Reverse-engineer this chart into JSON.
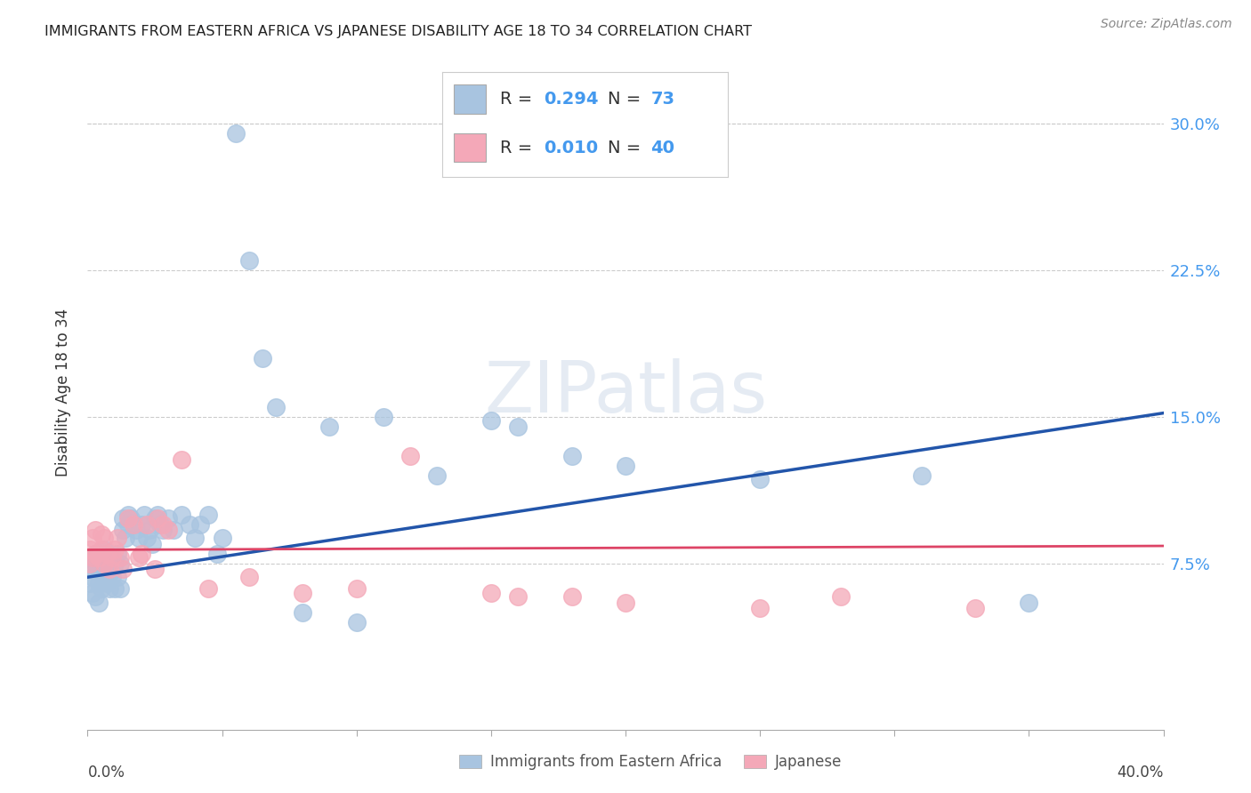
{
  "title": "IMMIGRANTS FROM EASTERN AFRICA VS JAPANESE DISABILITY AGE 18 TO 34 CORRELATION CHART",
  "source": "Source: ZipAtlas.com",
  "ylabel": "Disability Age 18 to 34",
  "ytick_labels": [
    "7.5%",
    "15.0%",
    "22.5%",
    "30.0%"
  ],
  "ytick_values": [
    0.075,
    0.15,
    0.225,
    0.3
  ],
  "xlim": [
    0.0,
    0.4
  ],
  "ylim": [
    -0.01,
    0.335
  ],
  "blue_R": 0.294,
  "blue_N": 73,
  "pink_R": 0.01,
  "pink_N": 40,
  "blue_color": "#a8c4e0",
  "pink_color": "#f4a8b8",
  "blue_line_color": "#2255aa",
  "pink_line_color": "#dd4466",
  "legend_label_blue": "Immigrants from Eastern Africa",
  "legend_label_pink": "Japanese",
  "watermark": "ZIPatlas",
  "blue_line_x": [
    0.0,
    0.4
  ],
  "blue_line_y": [
    0.068,
    0.152
  ],
  "pink_line_x": [
    0.0,
    0.4
  ],
  "pink_line_y": [
    0.082,
    0.084
  ],
  "blue_scatter_x": [
    0.001,
    0.001,
    0.002,
    0.002,
    0.002,
    0.003,
    0.003,
    0.003,
    0.004,
    0.004,
    0.004,
    0.005,
    0.005,
    0.005,
    0.006,
    0.006,
    0.006,
    0.007,
    0.007,
    0.007,
    0.008,
    0.008,
    0.009,
    0.009,
    0.01,
    0.01,
    0.011,
    0.011,
    0.012,
    0.012,
    0.013,
    0.013,
    0.014,
    0.015,
    0.015,
    0.016,
    0.017,
    0.018,
    0.019,
    0.02,
    0.021,
    0.022,
    0.023,
    0.024,
    0.025,
    0.026,
    0.027,
    0.028,
    0.03,
    0.032,
    0.035,
    0.038,
    0.04,
    0.042,
    0.045,
    0.048,
    0.05,
    0.055,
    0.06,
    0.065,
    0.07,
    0.08,
    0.09,
    0.1,
    0.11,
    0.13,
    0.15,
    0.16,
    0.18,
    0.2,
    0.25,
    0.31,
    0.35
  ],
  "blue_scatter_y": [
    0.072,
    0.065,
    0.078,
    0.068,
    0.06,
    0.075,
    0.08,
    0.058,
    0.072,
    0.065,
    0.055,
    0.078,
    0.07,
    0.062,
    0.082,
    0.072,
    0.068,
    0.075,
    0.065,
    0.08,
    0.07,
    0.062,
    0.078,
    0.068,
    0.075,
    0.062,
    0.08,
    0.068,
    0.075,
    0.062,
    0.092,
    0.098,
    0.088,
    0.095,
    0.1,
    0.098,
    0.095,
    0.092,
    0.088,
    0.095,
    0.1,
    0.088,
    0.092,
    0.085,
    0.098,
    0.1,
    0.095,
    0.092,
    0.098,
    0.092,
    0.1,
    0.095,
    0.088,
    0.095,
    0.1,
    0.08,
    0.088,
    0.295,
    0.23,
    0.18,
    0.155,
    0.05,
    0.145,
    0.045,
    0.15,
    0.12,
    0.148,
    0.145,
    0.13,
    0.125,
    0.118,
    0.12,
    0.055
  ],
  "pink_scatter_x": [
    0.001,
    0.001,
    0.002,
    0.002,
    0.003,
    0.003,
    0.004,
    0.005,
    0.005,
    0.006,
    0.006,
    0.007,
    0.008,
    0.009,
    0.01,
    0.011,
    0.012,
    0.013,
    0.015,
    0.017,
    0.019,
    0.02,
    0.022,
    0.025,
    0.026,
    0.028,
    0.03,
    0.035,
    0.045,
    0.06,
    0.08,
    0.1,
    0.12,
    0.15,
    0.16,
    0.18,
    0.2,
    0.25,
    0.28,
    0.33
  ],
  "pink_scatter_y": [
    0.082,
    0.075,
    0.088,
    0.078,
    0.092,
    0.08,
    0.078,
    0.082,
    0.09,
    0.075,
    0.088,
    0.08,
    0.072,
    0.078,
    0.082,
    0.088,
    0.078,
    0.072,
    0.098,
    0.095,
    0.078,
    0.08,
    0.095,
    0.072,
    0.098,
    0.095,
    0.092,
    0.128,
    0.062,
    0.068,
    0.06,
    0.062,
    0.13,
    0.06,
    0.058,
    0.058,
    0.055,
    0.052,
    0.058,
    0.052
  ]
}
